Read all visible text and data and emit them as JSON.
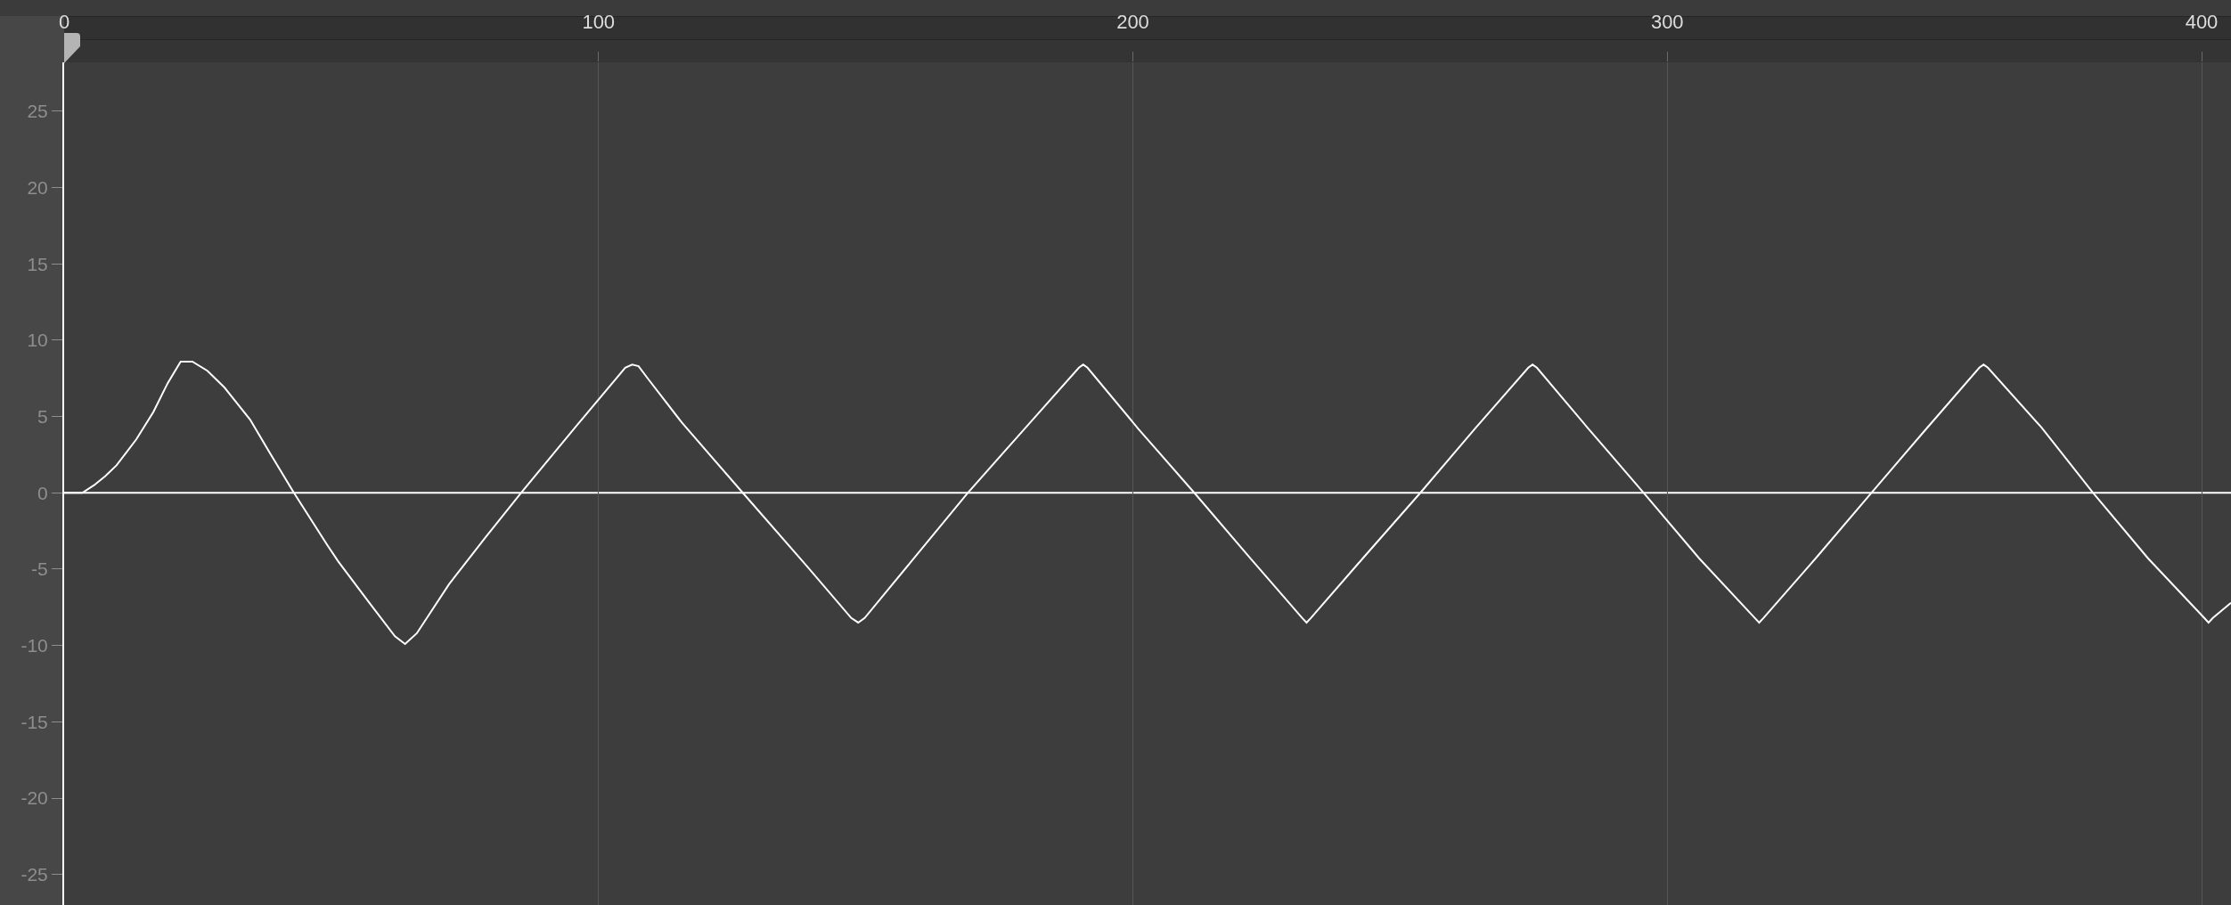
{
  "chart_data": {
    "type": "line",
    "color": "#ffffff",
    "line_style": "solid",
    "grid": "x",
    "x": [
      0,
      3.4,
      5.6,
      7.7,
      9.8,
      13.5,
      16.7,
      19.4,
      21.8,
      24.0,
      26.8,
      30.0,
      34.8,
      38.0,
      43.0,
      49.2,
      51.3,
      57.1,
      61.9,
      63.8,
      66.0,
      72.0,
      78.9,
      85.5,
      95.9,
      105.0,
      106.3,
      107.5,
      109.2,
      115.6,
      127.0,
      139.0,
      147.3,
      148.6,
      149.8,
      159.0,
      169.1,
      180.0,
      189.9,
      190.7,
      191.5,
      201.0,
      211.5,
      222.0,
      231.7,
      232.5,
      233.3,
      243.0,
      253.8,
      264.0,
      274.0,
      274.8,
      275.6,
      285.0,
      295.6,
      306.0,
      316.4,
      317.2,
      318.0,
      328.0,
      338.2,
      348.0,
      358.4,
      359.2,
      360.0,
      370.0,
      379.7,
      390.0,
      400.5,
      401.3,
      402.1,
      405.5
    ],
    "values": [
      0,
      0,
      0.5,
      1.1,
      1.8,
      3.5,
      5.3,
      7.2,
      8.6,
      8.6,
      8.0,
      6.9,
      4.8,
      2.9,
      0,
      -3.4,
      -4.5,
      -7.2,
      -9.4,
      -9.9,
      -9.2,
      -6.0,
      -2.9,
      0,
      4.4,
      8.2,
      8.4,
      8.3,
      7.5,
      4.6,
      0,
      -4.8,
      -8.2,
      -8.5,
      -8.2,
      -4.3,
      0,
      4.3,
      8.2,
      8.4,
      8.2,
      4.2,
      0,
      -4.3,
      -8.2,
      -8.5,
      -8.2,
      -4.3,
      0,
      4.2,
      8.2,
      8.4,
      8.2,
      4.3,
      0,
      -4.3,
      -8.2,
      -8.5,
      -8.2,
      -4.2,
      0,
      4.0,
      8.2,
      8.4,
      8.2,
      4.3,
      0,
      -4.3,
      -8.2,
      -8.5,
      -8.2,
      -7.2
    ],
    "xlim": [
      0,
      405.5
    ],
    "xticks": [
      0,
      100,
      200,
      300,
      400
    ],
    "ylim": [
      -27,
      28.2
    ],
    "yticks": [
      -25,
      -20,
      -15,
      -10,
      -5,
      0,
      5,
      10,
      15,
      20,
      25
    ],
    "ref_lines": [
      {
        "axis": "y",
        "value": 0,
        "color": "#ffffff"
      }
    ]
  }
}
